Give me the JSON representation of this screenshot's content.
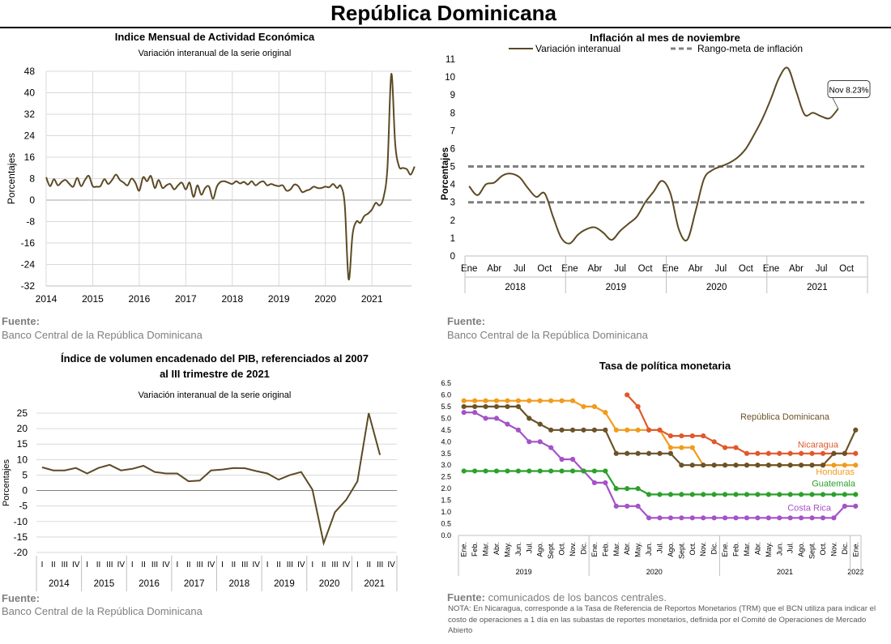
{
  "page": {
    "title": "República Dominicana"
  },
  "sources": {
    "label": "Fuente:",
    "bcrd": "Banco Central de la República Dominicana",
    "tpm_text": " comunicados de los bancos centrales.",
    "note": "NOTA: En Nicaragua, corresponde a la Tasa de Referencia de Reportos Monetarios (TRM) que el BCN utiliza para indicar el costo de operaciones a 1 día en las subastas de reportes monetarios, definida por el Comité de Operaciones de Mercado Abierto"
  },
  "colors": {
    "brown": "#5c4a24",
    "grid": "#d9d9d9",
    "target": "#7f7f7f",
    "rd": "#6b5227",
    "nicaragua": "#e0582b",
    "honduras": "#f29b1d",
    "guatemala": "#2ca02c",
    "costa_rica": "#a552c8"
  },
  "chart_data": [
    {
      "id": "imae",
      "type": "line",
      "title": "Indice Mensual de  Actividad Económica",
      "subtitle": "Variación interanual de la serie original",
      "ylabel": "Porcentajes",
      "xlabel": "",
      "ylim": [
        -32,
        48
      ],
      "yticks": [
        48,
        40,
        32,
        24,
        16,
        8,
        0,
        -8,
        -16,
        -24,
        -32
      ],
      "xlim": [
        2014,
        2021.85
      ],
      "xticks": [
        "2014",
        "2015",
        "2016",
        "2017",
        "2018",
        "2019",
        "2020",
        "2021"
      ],
      "grid": true,
      "series": [
        {
          "values": [
            8.5,
            5.2,
            7.8,
            5.5,
            6.8,
            7.5,
            6.0,
            5.0,
            8.2,
            5.2,
            7.5,
            9.0,
            5.2,
            5.0,
            5.2,
            7.8,
            6.0,
            7.5,
            9.5,
            7.5,
            6.5,
            5.5,
            8.0,
            6.5,
            3.5,
            8.5,
            7.0,
            9.0,
            4.5,
            7.5,
            4.5,
            5.5,
            6.0,
            4.0,
            5.5,
            6.5,
            4.0,
            6.5,
            1.2,
            5.5,
            2.0,
            4.5,
            5.0,
            0.5,
            5.0,
            6.8,
            7.0,
            6.5,
            6.0,
            7.0,
            6.2,
            6.8,
            5.8,
            7.0,
            5.5,
            6.5,
            7.0,
            5.5,
            6.0,
            5.5,
            5.2,
            5.5,
            3.5,
            4.0,
            5.8,
            5.2,
            3.0,
            3.5,
            4.0,
            5.0,
            4.5,
            4.5,
            5.0,
            4.8,
            6.0,
            4.5,
            5.2,
            -2.0,
            -29.5,
            -13.0,
            -8.0,
            -8.5,
            -6.0,
            -5.0,
            -3.5,
            -1.0,
            -2.0,
            1.0,
            12.0,
            47.0,
            21.0,
            12.5,
            12.0,
            11.5,
            9.5,
            12.5
          ]
        }
      ]
    },
    {
      "id": "inflation",
      "type": "line",
      "title": "Inflación al mes de noviembre",
      "ylabel": "Porcentajes",
      "ylim": [
        0,
        11
      ],
      "yticks": [
        0,
        1,
        2,
        3,
        4,
        5,
        6,
        7,
        8,
        9,
        10,
        11
      ],
      "month_ticks": [
        "Ene",
        "Abr",
        "Jul",
        "Oct"
      ],
      "years": [
        "2018",
        "2019",
        "2020",
        "2021"
      ],
      "grid": false,
      "legend": {
        "position": "top",
        "series_label": "Variación interanual",
        "target_label": "Rango-meta de inflación"
      },
      "target_band": [
        3,
        5
      ],
      "annotation": "Nov 8.23%",
      "series": [
        {
          "name": "Variación interanual",
          "values": [
            3.9,
            3.4,
            4.0,
            4.1,
            4.5,
            4.6,
            4.4,
            3.8,
            3.3,
            3.5,
            2.2,
            1.0,
            0.7,
            1.2,
            1.5,
            1.6,
            1.3,
            0.9,
            1.4,
            1.8,
            2.2,
            3.0,
            3.6,
            4.2,
            3.5,
            1.5,
            0.9,
            2.5,
            4.3,
            4.8,
            5.0,
            5.2,
            5.5,
            6.0,
            6.8,
            7.7,
            8.8,
            10.0,
            10.5,
            9.2,
            7.9,
            8.0,
            7.8,
            7.7,
            8.23
          ]
        }
      ]
    },
    {
      "id": "gdp",
      "type": "line",
      "title_line1": "Índice de volumen encadenado del PIB, referenciados al 2007",
      "title_line2": "al III trimestre de 2021",
      "subtitle": "Variación interanual de la serie original",
      "ylabel": "Porcentajes",
      "ylim": [
        -20,
        25
      ],
      "yticks": [
        25,
        20,
        15,
        10,
        5,
        0,
        -5,
        -10,
        -15,
        -20
      ],
      "quarter_ticks": [
        "I",
        "II",
        "III",
        "IV"
      ],
      "years": [
        "2014",
        "2015",
        "2016",
        "2017",
        "2018",
        "2019",
        "2020",
        "2021"
      ],
      "grid": true,
      "series": [
        {
          "values": [
            7.5,
            6.5,
            6.5,
            7.3,
            5.5,
            7.3,
            8.3,
            6.5,
            7.0,
            8.0,
            6.0,
            5.5,
            5.5,
            3.0,
            3.2,
            6.5,
            6.8,
            7.3,
            7.2,
            6.3,
            5.5,
            3.5,
            5.0,
            6.0,
            0.3,
            -17.0,
            -7.0,
            -3.0,
            3.0,
            25.0,
            11.5
          ]
        }
      ]
    },
    {
      "id": "tpm",
      "type": "line",
      "title": "Tasa de política monetaria",
      "ylim": [
        0,
        6.5
      ],
      "yticks": [
        "0.0",
        "0.5",
        "1.0",
        "1.5",
        "2.0",
        "2.5",
        "3.0",
        "3.5",
        "4.0",
        "4.5",
        "5.0",
        "5.5",
        "6.0",
        "6.5"
      ],
      "months": [
        "Ene.",
        "Feb.",
        "Mar.",
        "Abr.",
        "May.",
        "Jun.",
        "Jul.",
        "Ago.",
        "Sept.",
        "Oct.",
        "Nov.",
        "Dic.",
        "Ene.",
        "Feb.",
        "Mar.",
        "Abr.",
        "May.",
        "Jun.",
        "Jul.",
        "Ago.",
        "Sept.",
        "Oct.",
        "Nov.",
        "Dic.",
        "Ene.",
        "Feb.",
        "Mar.",
        "Abr.",
        "May.",
        "Jun.",
        "Jul.",
        "Ago.",
        "Sept.",
        "Oct.",
        "Nov.",
        "Dic.",
        "Ene."
      ],
      "years": [
        "2019",
        "2020",
        "2021",
        "2022"
      ],
      "grid": false,
      "series": [
        {
          "name": "República Dominicana",
          "values": [
            5.5,
            5.5,
            5.5,
            5.5,
            5.5,
            5.5,
            5.0,
            4.75,
            4.5,
            4.5,
            4.5,
            4.5,
            4.5,
            4.5,
            3.5,
            3.5,
            3.5,
            3.5,
            3.5,
            3.5,
            3.0,
            3.0,
            3.0,
            3.0,
            3.0,
            3.0,
            3.0,
            3.0,
            3.0,
            3.0,
            3.0,
            3.0,
            3.0,
            3.0,
            3.5,
            3.5,
            4.5
          ]
        },
        {
          "name": "Nicaragua",
          "values": [
            null,
            null,
            null,
            null,
            null,
            null,
            null,
            null,
            null,
            null,
            null,
            null,
            null,
            null,
            null,
            6.0,
            5.5,
            4.5,
            4.5,
            4.25,
            4.25,
            4.25,
            4.25,
            4.0,
            3.75,
            3.75,
            3.5,
            3.5,
            3.5,
            3.5,
            3.5,
            3.5,
            3.5,
            3.5,
            3.5,
            3.5,
            3.5
          ]
        },
        {
          "name": "Honduras",
          "values": [
            5.75,
            5.75,
            5.75,
            5.75,
            5.75,
            5.75,
            5.75,
            5.75,
            5.75,
            5.75,
            5.75,
            5.5,
            5.5,
            5.25,
            4.5,
            4.5,
            4.5,
            4.5,
            4.5,
            3.75,
            3.75,
            3.75,
            3.0,
            3.0,
            3.0,
            3.0,
            3.0,
            3.0,
            3.0,
            3.0,
            3.0,
            3.0,
            3.0,
            3.0,
            3.0,
            3.0,
            3.0
          ]
        },
        {
          "name": "Guatemala",
          "values": [
            2.75,
            2.75,
            2.75,
            2.75,
            2.75,
            2.75,
            2.75,
            2.75,
            2.75,
            2.75,
            2.75,
            2.75,
            2.75,
            2.75,
            2.0,
            2.0,
            2.0,
            1.75,
            1.75,
            1.75,
            1.75,
            1.75,
            1.75,
            1.75,
            1.75,
            1.75,
            1.75,
            1.75,
            1.75,
            1.75,
            1.75,
            1.75,
            1.75,
            1.75,
            1.75,
            1.75,
            1.75
          ]
        },
        {
          "name": "Costa Rica",
          "values": [
            5.25,
            5.25,
            5.0,
            5.0,
            4.75,
            4.5,
            4.0,
            4.0,
            3.75,
            3.25,
            3.25,
            2.75,
            2.25,
            2.25,
            1.25,
            1.25,
            1.25,
            0.75,
            0.75,
            0.75,
            0.75,
            0.75,
            0.75,
            0.75,
            0.75,
            0.75,
            0.75,
            0.75,
            0.75,
            0.75,
            0.75,
            0.75,
            0.75,
            0.75,
            0.75,
            1.25,
            1.25
          ]
        }
      ]
    }
  ]
}
